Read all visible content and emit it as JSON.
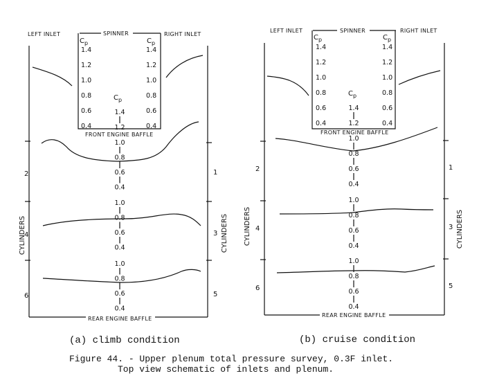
{
  "labels": {
    "left_inlet": "LEFT INLET",
    "spinner": "SPINNER",
    "right_inlet": "RIGHT INLET",
    "front_baffle": "FRONT ENGINE BAFFLE",
    "rear_baffle": "REAR ENGINE BAFFLE",
    "cylinders": "CYLINDERS",
    "cp_symbol": "C",
    "cp_sub": "p"
  },
  "diagrams": [
    {
      "id": "climb",
      "subtitle": "(a) climb condition",
      "spinner_scale": [
        "1.4",
        "1.2",
        "1.0",
        "0.8",
        "0.6",
        "0.4"
      ],
      "center_scale": [
        "1.4",
        "1.2"
      ],
      "section_scale": [
        "1.0",
        "0.8",
        "0.6",
        "0.4"
      ],
      "cylinders_left": [
        "2",
        "4",
        "6"
      ],
      "cylinders_right": [
        "1",
        "3",
        "5"
      ]
    },
    {
      "id": "cruise",
      "subtitle": "(b) cruise condition",
      "spinner_scale": [
        "1.4",
        "1.2",
        "1.0",
        "0.8",
        "0.6",
        "0.4"
      ],
      "center_scale": [
        "1.4",
        "1.2"
      ],
      "section_scale": [
        "1.0",
        "0.8",
        "0.6",
        "0.4"
      ],
      "cylinders_left": [
        "2",
        "4",
        "6"
      ],
      "cylinders_right": [
        "1",
        "3",
        "5"
      ]
    }
  ],
  "caption": {
    "line1": "Figure 44. - Upper plenum total pressure survey, 0.3F inlet.",
    "line2": "Top view schematic of inlets and plenum."
  }
}
